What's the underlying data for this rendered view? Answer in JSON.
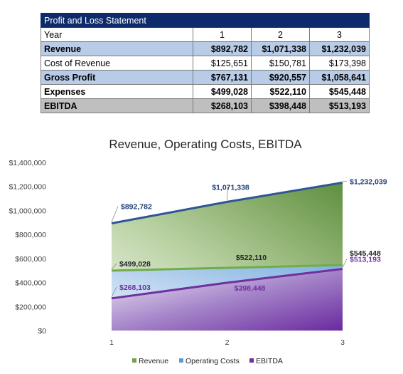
{
  "table": {
    "title": "Profit and Loss Statement",
    "header": {
      "label": "Year",
      "years": [
        "1",
        "2",
        "3"
      ]
    },
    "rows": [
      {
        "label": "Revenue",
        "values": [
          "$892,782",
          "$1,071,338",
          "$1,232,039"
        ]
      },
      {
        "label": "Cost of Revenue",
        "values": [
          "$125,651",
          "$150,781",
          "$173,398"
        ]
      },
      {
        "label": "Gross Profit",
        "values": [
          "$767,131",
          "$920,557",
          "$1,058,641"
        ]
      },
      {
        "label": "Expenses",
        "values": [
          "$499,028",
          "$522,110",
          "$545,448"
        ]
      },
      {
        "label": "EBITDA",
        "values": [
          "$268,103",
          "$398,448",
          "$513,193"
        ]
      }
    ],
    "colors": {
      "title_bg": "#0d2a6b",
      "highlight_blue": "#b8cbe7",
      "highlight_gray": "#bfbfbf"
    }
  },
  "chart_data": {
    "type": "area",
    "title": "Revenue, Operating Costs, EBITDA",
    "categories": [
      "1",
      "2",
      "3"
    ],
    "x_tick_labels": [
      "1",
      "2",
      "3"
    ],
    "y_tick_labels": [
      "$0",
      "$200,000",
      "$400,000",
      "$600,000",
      "$800,000",
      "$1,000,000",
      "$1,200,000",
      "$1,400,000"
    ],
    "ylim": [
      0,
      1400000
    ],
    "grid": false,
    "legend_position": "bottom",
    "series": [
      {
        "name": "Revenue",
        "values": [
          892782,
          1071338,
          1232039
        ],
        "labels": [
          "$892,782",
          "$1,071,338",
          "$1,232,039"
        ],
        "line_color": "#2f5597",
        "fill_color": "#70a050"
      },
      {
        "name": "Operating Costs",
        "values": [
          499028,
          522110,
          545448
        ],
        "labels": [
          "$499,028",
          "$522,110",
          "$545,448"
        ],
        "line_color": "#70ad47",
        "fill_color": "#5b9bd5"
      },
      {
        "name": "EBITDA",
        "values": [
          268103,
          398448,
          513193
        ],
        "labels": [
          "$268,103",
          "$398,448",
          "$513,193"
        ],
        "line_color": "#7030a0",
        "fill_color": "#7030a0"
      }
    ]
  }
}
